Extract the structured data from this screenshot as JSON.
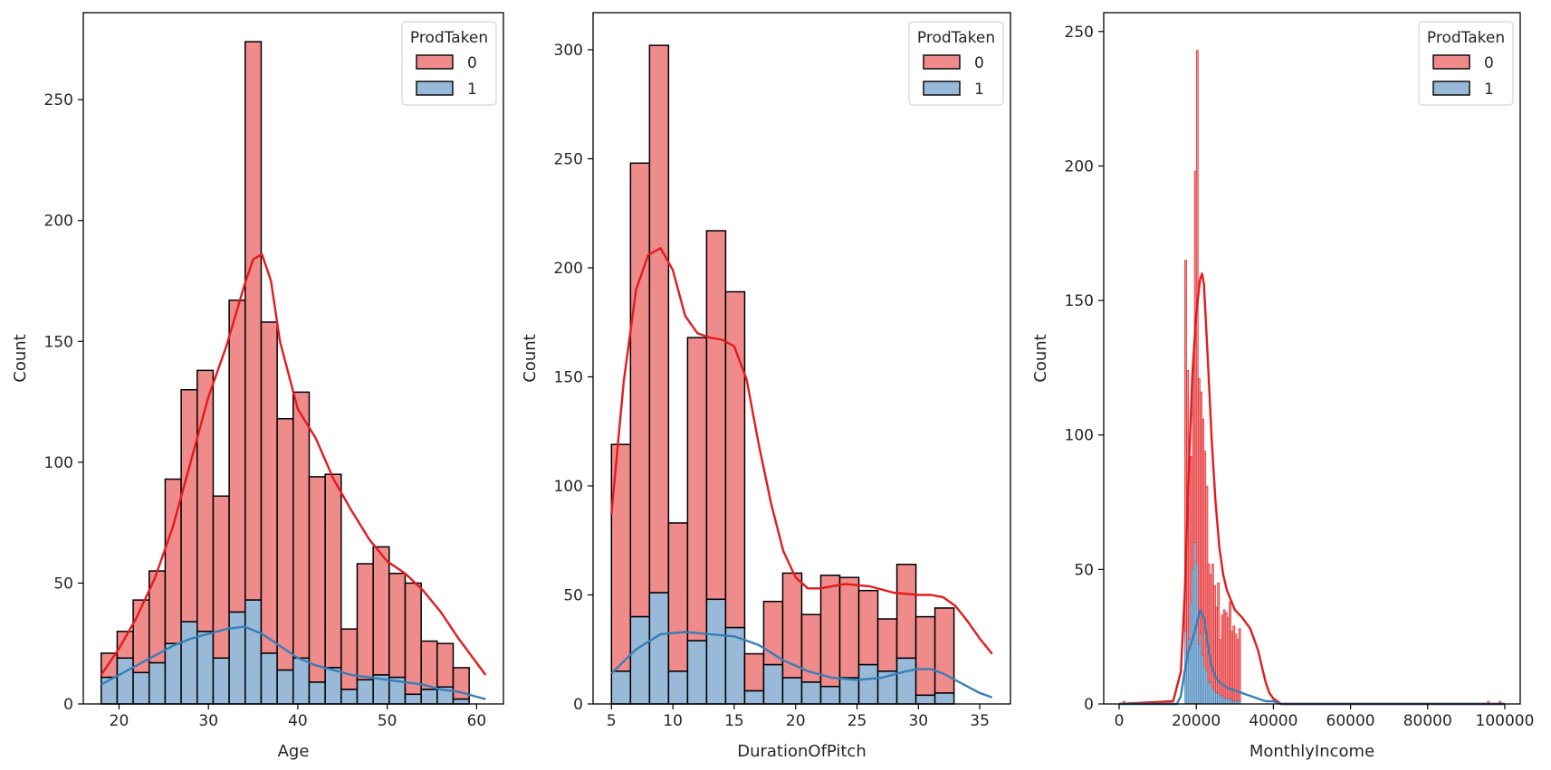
{
  "chart_data": [
    {
      "type": "histogram",
      "xlabel": "Age",
      "ylabel": "Count",
      "xlim": [
        16,
        63
      ],
      "ylim": [
        0,
        286
      ],
      "xticks": [
        20,
        30,
        40,
        50,
        60
      ],
      "yticks": [
        0,
        50,
        100,
        150,
        200,
        250
      ],
      "bin_start": 18,
      "bin_width": 1.79,
      "stacked_totals": [
        21,
        30,
        43,
        55,
        93,
        130,
        138,
        86,
        167,
        274,
        158,
        118,
        129,
        94,
        95,
        31,
        58,
        65,
        54,
        50,
        26,
        25,
        15
      ],
      "series": [
        {
          "name": "1",
          "values": [
            11,
            19,
            13,
            17,
            25,
            34,
            30,
            19,
            38,
            43,
            21,
            14,
            19,
            9,
            15,
            6,
            10,
            12,
            11,
            4,
            6,
            7,
            2
          ]
        }
      ],
      "kde": [
        {
          "name": "0",
          "x": [
            18,
            20,
            22,
            24,
            26,
            28,
            30,
            32,
            34,
            35,
            36,
            37,
            38,
            40,
            42,
            44,
            46,
            48,
            50,
            52,
            54,
            56,
            58,
            60,
            61
          ],
          "y": [
            12,
            23,
            36,
            52,
            73,
            100,
            127,
            148,
            173,
            184,
            186,
            175,
            150,
            122,
            110,
            93,
            80,
            68,
            59,
            54,
            47,
            38,
            27,
            17,
            12
          ]
        },
        {
          "name": "1",
          "x": [
            18,
            20,
            22,
            24,
            26,
            28,
            30,
            32,
            34,
            36,
            38,
            40,
            42,
            44,
            46,
            48,
            50,
            52,
            54,
            56,
            58,
            60,
            61
          ],
          "y": [
            8,
            12,
            16,
            20,
            24,
            27,
            29,
            31,
            32,
            29,
            24,
            19,
            16,
            14,
            12,
            11,
            10,
            9,
            8,
            6,
            5,
            3,
            2
          ]
        }
      ]
    },
    {
      "type": "histogram",
      "xlabel": "DurationOfPitch",
      "ylabel": "Count",
      "xlim": [
        3.5,
        37.5
      ],
      "ylim": [
        0,
        317
      ],
      "xticks": [
        5,
        10,
        15,
        20,
        25,
        30,
        35
      ],
      "yticks": [
        0,
        50,
        100,
        150,
        200,
        250,
        300
      ],
      "bin_start": 5,
      "bin_width": 1.55,
      "stacked_totals": [
        119,
        248,
        302,
        83,
        168,
        217,
        189,
        23,
        47,
        60,
        41,
        59,
        58,
        52,
        39,
        64,
        40,
        44
      ],
      "series": [
        {
          "name": "1",
          "values": [
            15,
            40,
            51,
            15,
            29,
            48,
            35,
            6,
            18,
            12,
            10,
            8,
            12,
            18,
            15,
            21,
            4,
            5
          ]
        }
      ],
      "kde": [
        {
          "name": "0",
          "x": [
            5,
            6,
            7,
            8,
            9,
            10,
            11,
            12,
            13,
            14,
            15,
            16,
            17,
            18,
            19,
            20,
            21,
            22,
            24,
            26,
            28,
            30,
            31,
            32,
            33,
            34,
            35,
            36
          ],
          "y": [
            87,
            148,
            190,
            206,
            209,
            199,
            178,
            170,
            168,
            167,
            164,
            149,
            119,
            92,
            70,
            58,
            53,
            53,
            55,
            54,
            51,
            50,
            50,
            49,
            45,
            38,
            30,
            23
          ]
        },
        {
          "name": "1",
          "x": [
            5,
            7,
            9,
            11,
            13,
            15,
            17,
            19,
            21,
            23,
            25,
            27,
            29,
            30,
            31,
            32,
            33,
            34,
            35,
            36
          ],
          "y": [
            14,
            25,
            32,
            33,
            32,
            31,
            27,
            20,
            15,
            12,
            11,
            12,
            15,
            16,
            16,
            14,
            11,
            8,
            5,
            3
          ]
        }
      ]
    },
    {
      "type": "histogram",
      "xlabel": "MonthlyIncome",
      "ylabel": "Count",
      "xlim": [
        -4000,
        104000
      ],
      "ylim": [
        0,
        257
      ],
      "xticks": [
        0,
        20000,
        40000,
        60000,
        80000,
        100000
      ],
      "xticklabels": [
        "0",
        "20000",
        "40000",
        "60000",
        "80000",
        "100000"
      ],
      "yticks": [
        0,
        50,
        100,
        150,
        200,
        250
      ],
      "bin_start": 17000,
      "bin_width": 500,
      "stacked_totals": [
        165,
        124,
        88,
        92,
        127,
        198,
        243,
        121,
        116,
        106,
        94,
        81,
        52,
        48,
        52,
        44,
        36,
        45,
        24,
        33,
        35,
        34,
        32,
        38,
        27,
        29,
        26,
        24,
        28
      ],
      "series": [
        {
          "name": "1",
          "values": [
            27,
            18,
            24,
            38,
            50,
            60,
            52,
            22,
            26,
            18,
            14,
            12,
            8,
            8,
            6,
            5,
            4,
            4,
            3,
            3,
            2,
            2,
            2,
            2,
            1,
            1,
            1,
            1,
            1
          ]
        }
      ],
      "outliers_0": [
        {
          "x": 1000,
          "count": 1
        },
        {
          "x": 95500,
          "count": 1
        },
        {
          "x": 98500,
          "count": 1
        }
      ],
      "kde": [
        {
          "name": "0",
          "x": [
            0,
            14000,
            16000,
            17000,
            18000,
            19000,
            20000,
            21000,
            21500,
            22000,
            23000,
            24000,
            25000,
            26000,
            27000,
            28000,
            30000,
            32000,
            34000,
            36000,
            37000,
            38000,
            39000,
            40000,
            42000,
            60000,
            80000,
            100000
          ],
          "y": [
            0,
            1,
            12,
            40,
            85,
            123,
            145,
            158,
            160,
            156,
            128,
            98,
            75,
            58,
            48,
            42,
            35,
            32,
            28,
            20,
            14,
            8,
            4,
            2,
            0,
            0,
            0,
            0
          ]
        },
        {
          "name": "1",
          "x": [
            0,
            15000,
            16000,
            17000,
            18000,
            19000,
            20000,
            21000,
            22000,
            23000,
            24000,
            25000,
            26000,
            28000,
            30000,
            32000,
            34000,
            36000,
            38000,
            40000,
            42000,
            100000
          ],
          "y": [
            0,
            0,
            3,
            12,
            20,
            24,
            29,
            35,
            32,
            22,
            14,
            10,
            8,
            6,
            5,
            4,
            3,
            2,
            1,
            1,
            0,
            0
          ]
        }
      ]
    }
  ],
  "legend": {
    "title": "ProdTaken",
    "labels": [
      "0",
      "1"
    ],
    "position": "top-right"
  },
  "colors": {
    "bar0": "#f08b8c",
    "bar1": "#98bad8",
    "line0": "#e41a1c",
    "line1": "#377eb8",
    "edge": "#000000"
  }
}
